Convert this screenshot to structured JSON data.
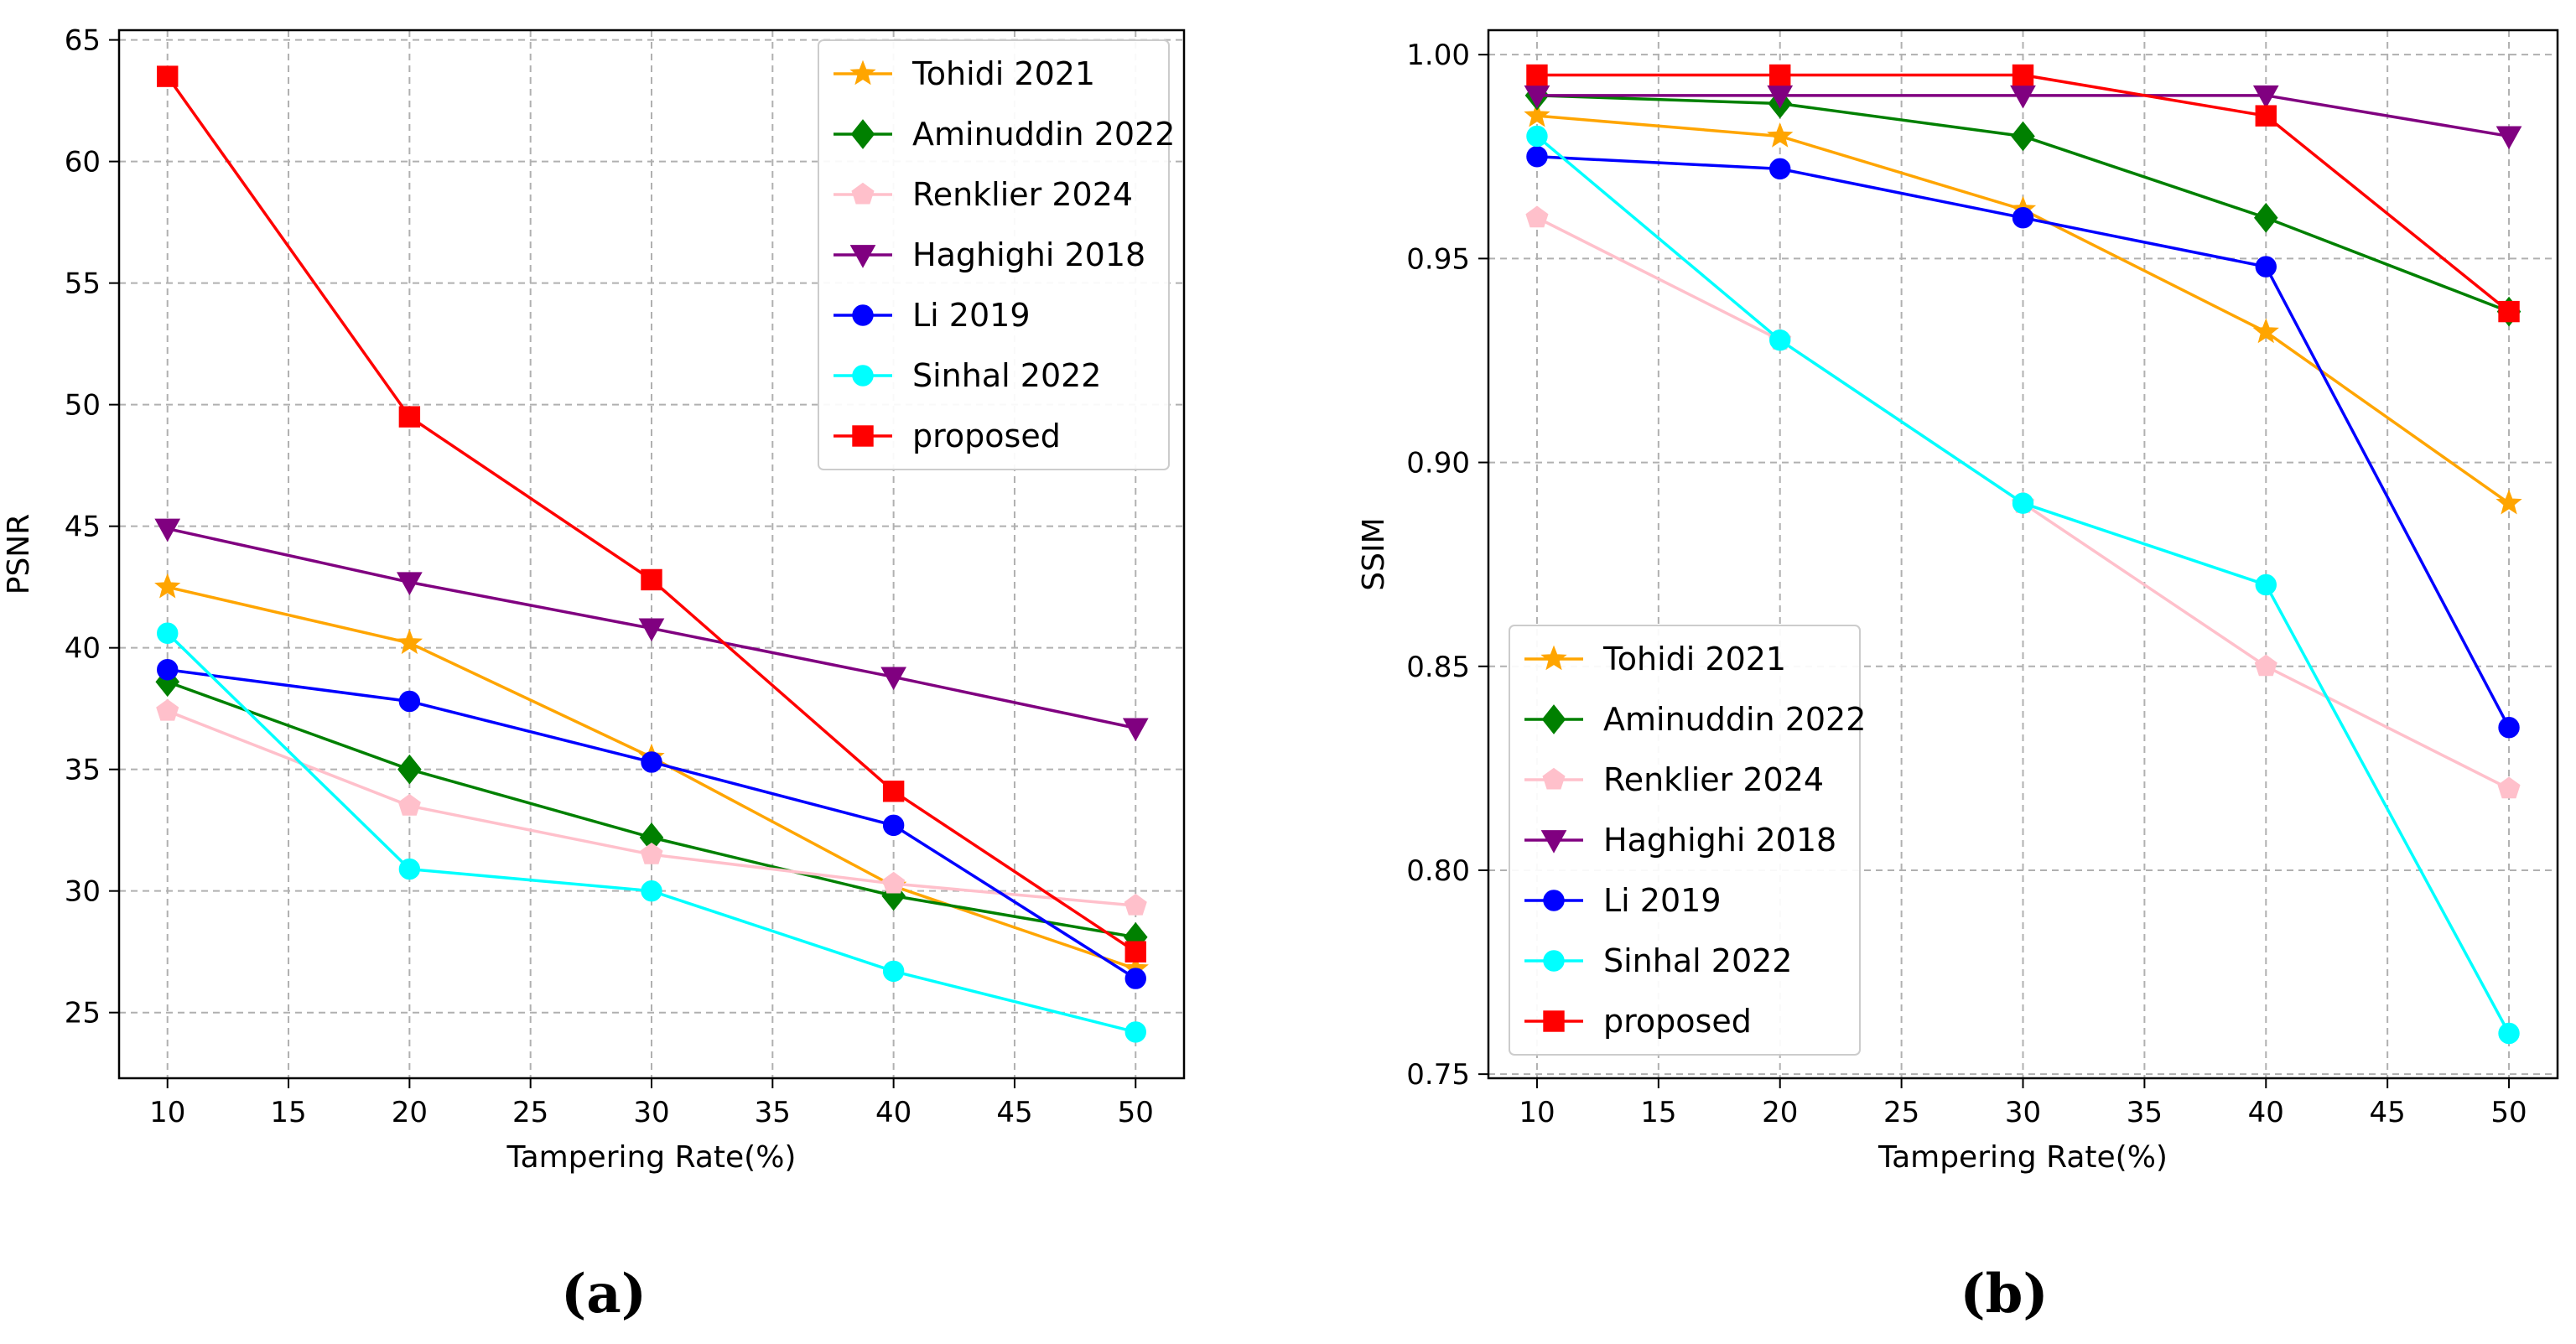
{
  "chart_data": [
    {
      "type": "line",
      "caption": "(a)",
      "xlabel": "Tampering Rate(%)",
      "ylabel": "PSNR",
      "xlim": [
        8,
        52
      ],
      "ylim": [
        22.3,
        65.4
      ],
      "xticks": [
        10,
        15,
        20,
        25,
        30,
        35,
        40,
        45,
        50
      ],
      "yticks": [
        25,
        30,
        35,
        40,
        45,
        50,
        55,
        60,
        65
      ],
      "ytick_labels": [
        "25",
        "30",
        "35",
        "40",
        "45",
        "50",
        "55",
        "60",
        "65"
      ],
      "grid": true,
      "legend_position": "top-right",
      "x": [
        10,
        20,
        30,
        40,
        50
      ],
      "series": [
        {
          "name": "Tohidi 2021",
          "color": "#FFA500",
          "marker": "star",
          "values": [
            42.5,
            40.2,
            35.5,
            30.2,
            26.8
          ]
        },
        {
          "name": "Aminuddin 2022",
          "color": "#008000",
          "marker": "diamond",
          "values": [
            38.6,
            35.0,
            32.2,
            29.8,
            28.1
          ]
        },
        {
          "name": "Renklier 2024",
          "color": "#FFC0CB",
          "marker": "pentagon",
          "values": [
            37.4,
            33.5,
            31.5,
            30.3,
            29.4
          ]
        },
        {
          "name": "Haghighi 2018",
          "color": "#800080",
          "marker": "triangle-down",
          "values": [
            44.9,
            42.7,
            40.8,
            38.8,
            36.7
          ]
        },
        {
          "name": "Li 2019",
          "color": "#0000FF",
          "marker": "circle",
          "values": [
            39.1,
            37.8,
            35.3,
            32.7,
            26.4
          ]
        },
        {
          "name": "Sinhal 2022",
          "color": "#00FFFF",
          "marker": "circle",
          "values": [
            40.6,
            30.9,
            30.0,
            26.7,
            24.2
          ]
        },
        {
          "name": "proposed",
          "color": "#FF0000",
          "marker": "square",
          "values": [
            63.5,
            49.5,
            42.8,
            34.1,
            27.5
          ]
        }
      ]
    },
    {
      "type": "line",
      "caption": "(b)",
      "xlabel": "Tampering Rate(%)",
      "ylabel": "SSIM",
      "xlim": [
        8,
        52
      ],
      "ylim": [
        0.749,
        1.006
      ],
      "xticks": [
        10,
        15,
        20,
        25,
        30,
        35,
        40,
        45,
        50
      ],
      "yticks": [
        0.75,
        0.8,
        0.85,
        0.9,
        0.95,
        1.0
      ],
      "ytick_labels": [
        "0.75",
        "0.80",
        "0.85",
        "0.90",
        "0.95",
        "1.00"
      ],
      "grid": true,
      "legend_position": "lower-left",
      "x": [
        10,
        20,
        30,
        40,
        50
      ],
      "series": [
        {
          "name": "Tohidi 2021",
          "color": "#FFA500",
          "marker": "star",
          "values": [
            0.985,
            0.98,
            0.962,
            0.932,
            0.89
          ]
        },
        {
          "name": "Aminuddin 2022",
          "color": "#008000",
          "marker": "diamond",
          "values": [
            0.99,
            0.988,
            0.98,
            0.96,
            0.937
          ]
        },
        {
          "name": "Renklier 2024",
          "color": "#FFC0CB",
          "marker": "pentagon",
          "values": [
            0.96,
            0.93,
            0.89,
            0.85,
            0.82
          ]
        },
        {
          "name": "Haghighi 2018",
          "color": "#800080",
          "marker": "triangle-down",
          "values": [
            0.99,
            0.99,
            0.99,
            0.99,
            0.98
          ]
        },
        {
          "name": "Li 2019",
          "color": "#0000FF",
          "marker": "circle",
          "values": [
            0.975,
            0.972,
            0.96,
            0.948,
            0.835
          ]
        },
        {
          "name": "Sinhal 2022",
          "color": "#00FFFF",
          "marker": "circle",
          "values": [
            0.98,
            0.93,
            0.89,
            0.87,
            0.76
          ]
        },
        {
          "name": "proposed",
          "color": "#FF0000",
          "marker": "square",
          "values": [
            0.995,
            0.995,
            0.995,
            0.985,
            0.937
          ]
        }
      ]
    }
  ]
}
